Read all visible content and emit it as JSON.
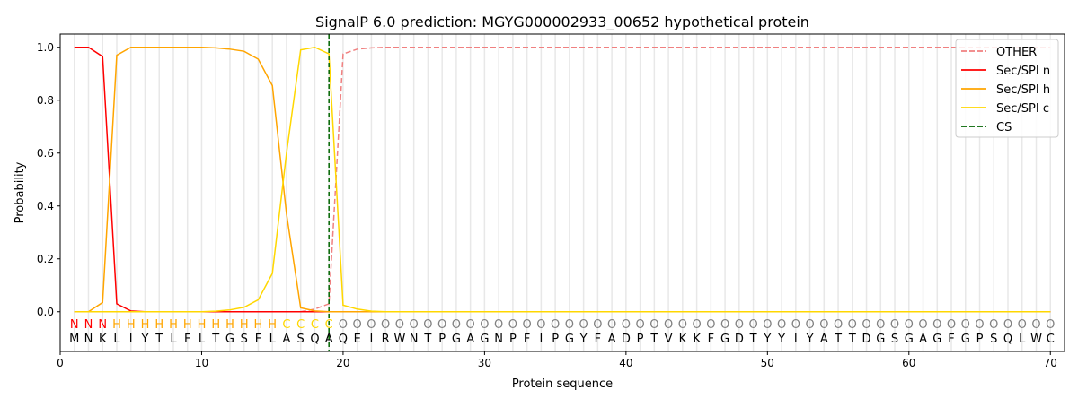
{
  "chart_data": {
    "type": "line",
    "title": "SignalP 6.0 prediction: MGYG000002933_00652 hypothetical protein",
    "xlabel": "Protein sequence",
    "ylabel": "Probability",
    "xlim": [
      0,
      71
    ],
    "ylim": [
      -0.15,
      1.05
    ],
    "xticks": [
      0,
      10,
      20,
      30,
      40,
      50,
      60,
      70
    ],
    "yticks": [
      0.0,
      0.2,
      0.4,
      0.6,
      0.8,
      1.0
    ],
    "legend_position": "top-right",
    "sequence": "MNKLIYTLFLTGSFLASQAQEIRWNTPGAGNPFIPGYFADPTVKKFGDTYYIYATTDGSGAGFGPSQLWC",
    "labels": "NNNHHHHHHHHHHHHCCCCOOOOOOOOOOOOOOOOOOOOOOOOOOOOOOOOOOOOOOOOOOOOOOOOOOO",
    "label_colors": {
      "N": "#ff0000",
      "H": "#ffa500",
      "C": "#ffd700",
      "O": "#808080"
    },
    "cs_position": 19,
    "series": [
      {
        "name": "OTHER",
        "color": "#f08080",
        "dashed": true,
        "values": [
          0,
          0,
          0,
          0,
          0,
          0,
          0,
          0,
          0,
          0,
          0,
          0,
          0,
          0,
          0,
          0,
          0,
          0.01,
          0.03,
          0.975,
          0.993,
          0.998,
          1,
          1,
          1,
          1,
          1,
          1,
          1,
          1,
          1,
          1,
          1,
          1,
          1,
          1,
          1,
          1,
          1,
          1,
          1,
          1,
          1,
          1,
          1,
          1,
          1,
          1,
          1,
          1,
          1,
          1,
          1,
          1,
          1,
          1,
          1,
          1,
          1,
          1,
          1,
          1,
          1,
          1,
          1,
          1,
          1,
          1,
          1,
          1
        ]
      },
      {
        "name": "Sec/SPI n",
        "color": "#ff0000",
        "dashed": false,
        "values": [
          1,
          1,
          0.965,
          0.03,
          0.003,
          0,
          0,
          0,
          0,
          0,
          0,
          0,
          0,
          0,
          0,
          0,
          0,
          0,
          0,
          0,
          0,
          0,
          0,
          0,
          0,
          0,
          0,
          0,
          0,
          0,
          0,
          0,
          0,
          0,
          0,
          0,
          0,
          0,
          0,
          0,
          0,
          0,
          0,
          0,
          0,
          0,
          0,
          0,
          0,
          0,
          0,
          0,
          0,
          0,
          0,
          0,
          0,
          0,
          0,
          0,
          0,
          0,
          0,
          0,
          0,
          0,
          0,
          0,
          0,
          0
        ]
      },
      {
        "name": "Sec/SPI h",
        "color": "#ffa500",
        "dashed": false,
        "values": [
          0,
          0,
          0.035,
          0.97,
          1,
          1,
          1,
          1,
          1,
          1,
          0.998,
          0.993,
          0.985,
          0.955,
          0.855,
          0.37,
          0.015,
          0.003,
          0,
          0,
          0,
          0,
          0,
          0,
          0,
          0,
          0,
          0,
          0,
          0,
          0,
          0,
          0,
          0,
          0,
          0,
          0,
          0,
          0,
          0,
          0,
          0,
          0,
          0,
          0,
          0,
          0,
          0,
          0,
          0,
          0,
          0,
          0,
          0,
          0,
          0,
          0,
          0,
          0,
          0,
          0,
          0,
          0,
          0,
          0,
          0,
          0,
          0,
          0,
          0
        ]
      },
      {
        "name": "Sec/SPI c",
        "color": "#ffd700",
        "dashed": false,
        "values": [
          0,
          0,
          0,
          0,
          0,
          0,
          0,
          0,
          0,
          0,
          0.002,
          0.007,
          0.017,
          0.045,
          0.145,
          0.6,
          0.99,
          1,
          0.975,
          0.025,
          0.01,
          0.002,
          0,
          0,
          0,
          0,
          0,
          0,
          0,
          0,
          0,
          0,
          0,
          0,
          0,
          0,
          0,
          0,
          0,
          0,
          0,
          0,
          0,
          0,
          0,
          0,
          0,
          0,
          0,
          0,
          0,
          0,
          0,
          0,
          0,
          0,
          0,
          0,
          0,
          0,
          0,
          0,
          0,
          0,
          0,
          0,
          0,
          0,
          0,
          0
        ]
      },
      {
        "name": "CS",
        "color": "#006400",
        "dashed": true,
        "values": []
      }
    ]
  }
}
